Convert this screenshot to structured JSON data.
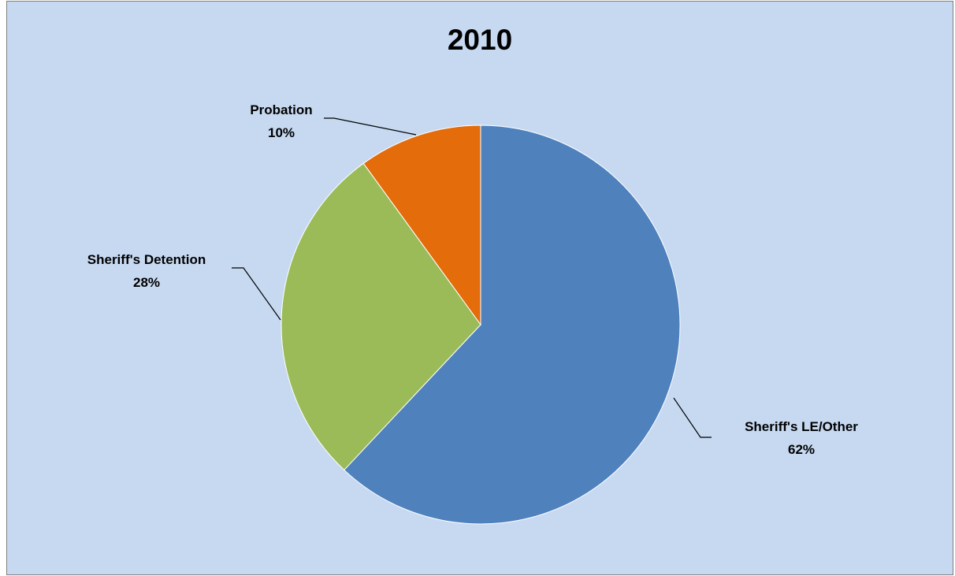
{
  "chart_data": {
    "type": "pie",
    "title": "2010",
    "start_angle": "12 o'clock",
    "direction": "clockwise",
    "slices": [
      {
        "name": "Sheriff's LE/Other",
        "value": 62,
        "label_value": "62%",
        "color": "#4f81bd"
      },
      {
        "name": "Sheriff's Detention",
        "value": 28,
        "label_value": "28%",
        "color": "#9bbb59"
      },
      {
        "name": "Probation",
        "value": 10,
        "label_value": "10%",
        "color": "#e46c0a"
      }
    ],
    "background_color": "#c6d9f1",
    "border_color": "#7f7f7f",
    "legend": "none"
  }
}
